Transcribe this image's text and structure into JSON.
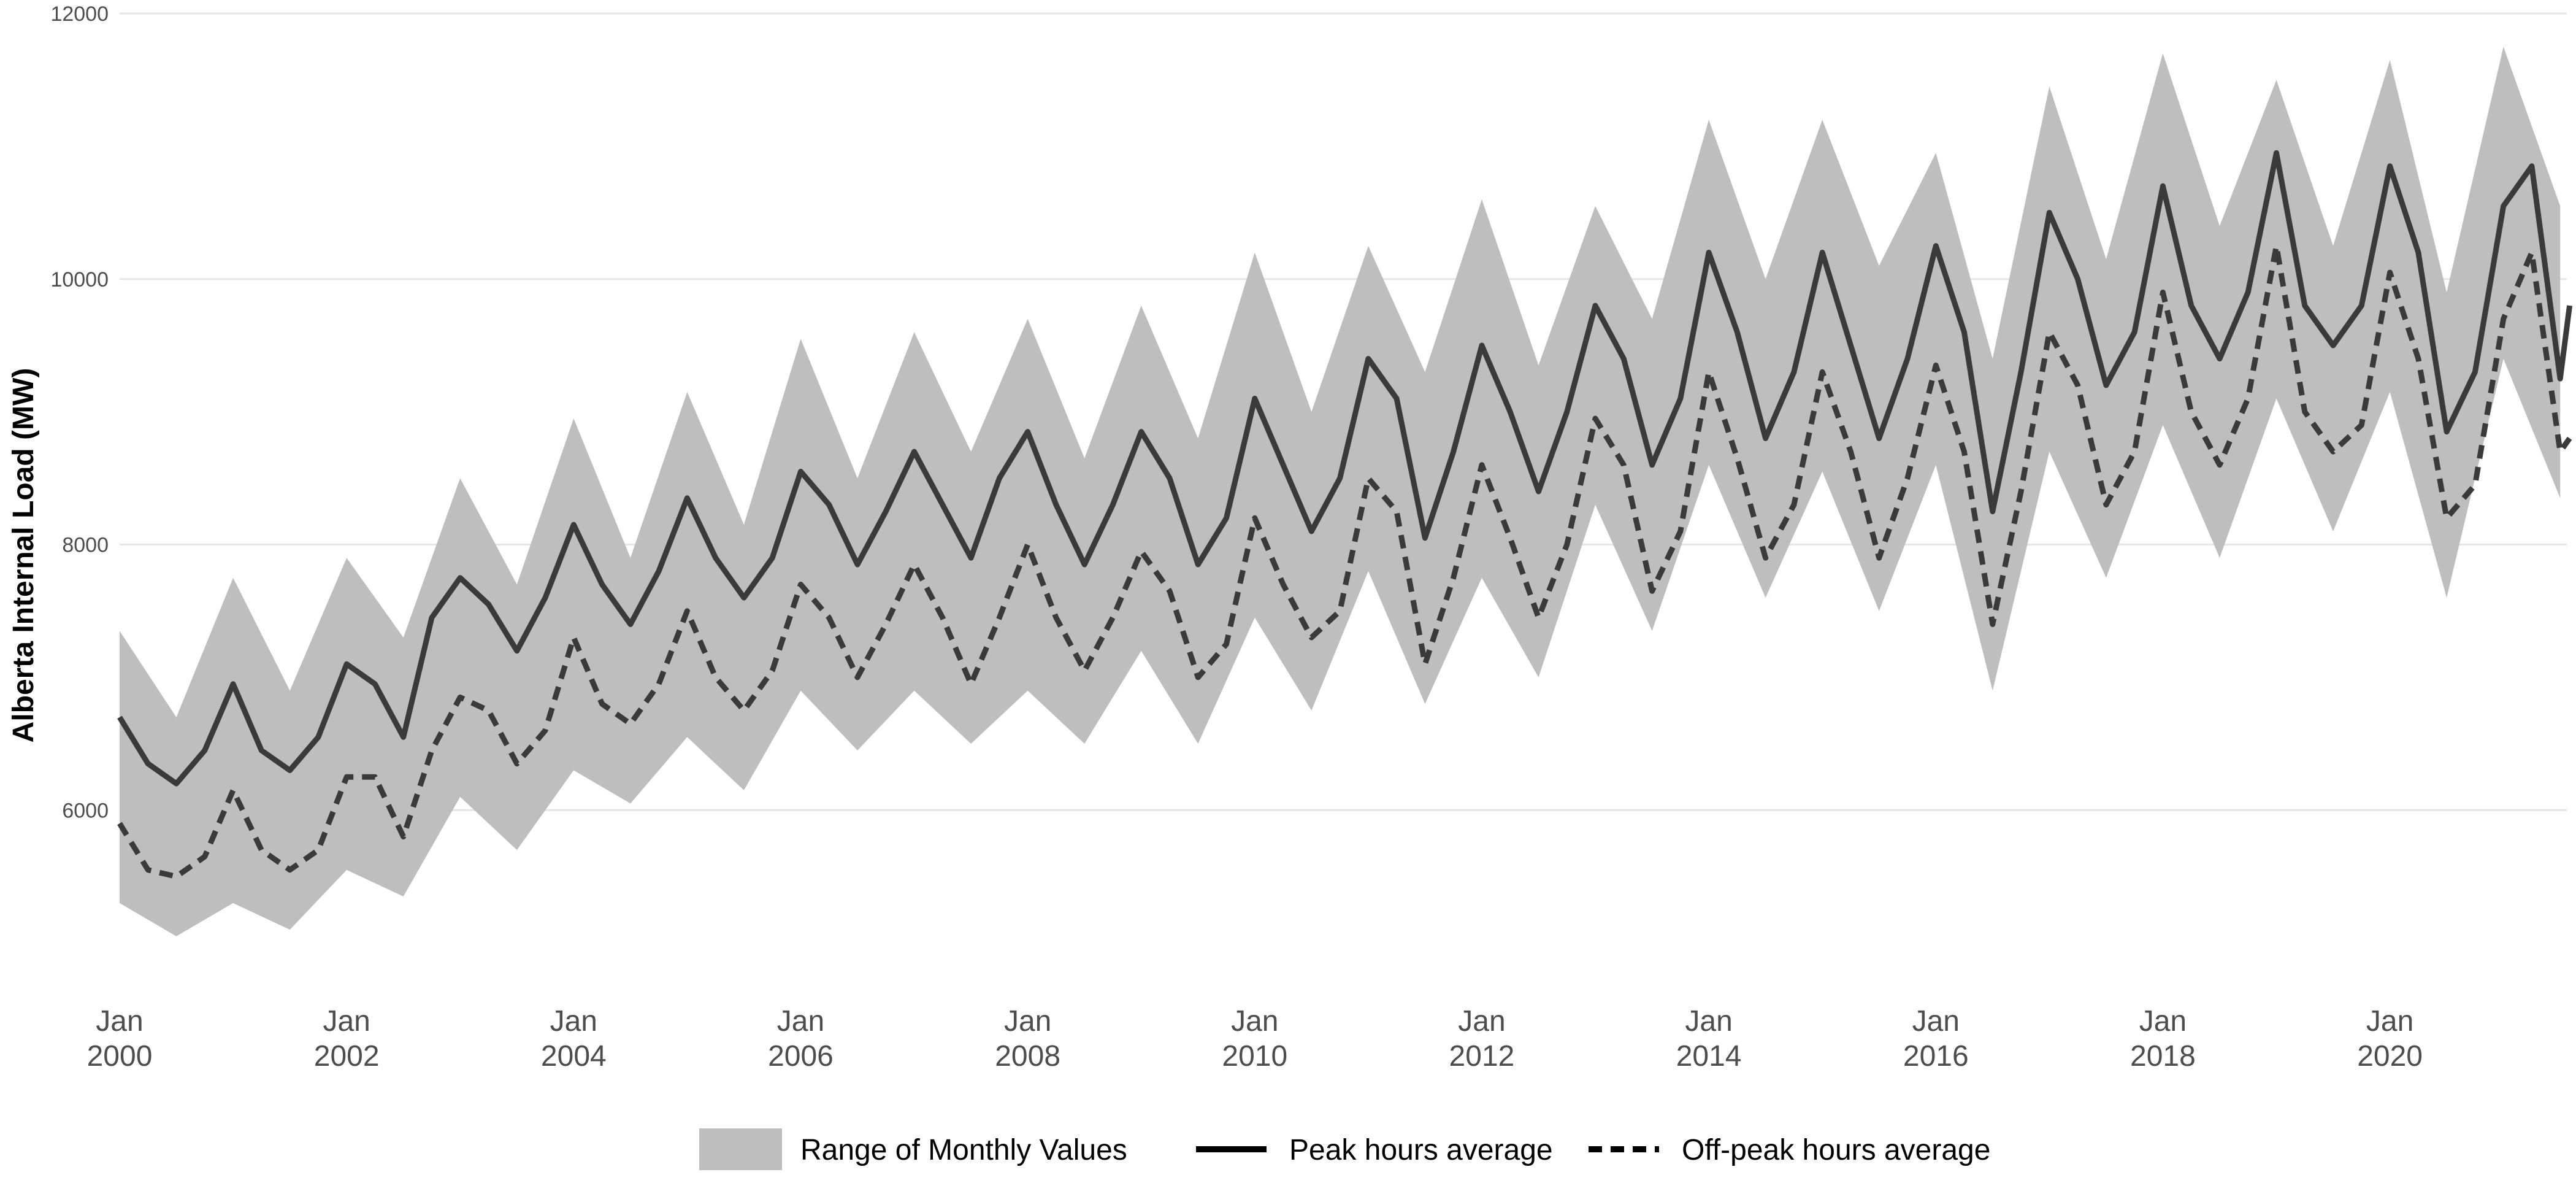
{
  "chart_data": {
    "type": "area",
    "ylabel": "Alberta Internal Load (MW)",
    "xlabel": "",
    "ylim": [
      4800,
      12000
    ],
    "yticks": [
      6000,
      8000,
      10000,
      12000
    ],
    "x_range": [
      "2000-01",
      "2021-07"
    ],
    "xticks": [
      {
        "date": "2000-01",
        "line1": "Jan",
        "line2": "2000"
      },
      {
        "date": "2002-01",
        "line1": "Jan",
        "line2": "2002"
      },
      {
        "date": "2004-01",
        "line1": "Jan",
        "line2": "2004"
      },
      {
        "date": "2006-01",
        "line1": "Jan",
        "line2": "2006"
      },
      {
        "date": "2008-01",
        "line1": "Jan",
        "line2": "2008"
      },
      {
        "date": "2010-01",
        "line1": "Jan",
        "line2": "2010"
      },
      {
        "date": "2012-01",
        "line1": "Jan",
        "line2": "2012"
      },
      {
        "date": "2014-01",
        "line1": "Jan",
        "line2": "2014"
      },
      {
        "date": "2016-01",
        "line1": "Jan",
        "line2": "2016"
      },
      {
        "date": "2018-01",
        "line1": "Jan",
        "line2": "2018"
      },
      {
        "date": "2020-01",
        "line1": "Jan",
        "line2": "2020"
      }
    ],
    "grid": true,
    "legend_position": "bottom",
    "colors": {
      "range_fill": "#bebebe",
      "line": "#3a3a3a"
    },
    "series": [
      {
        "name": "Range of Monthly Values",
        "kind": "ribbon",
        "points": [
          [
            "2000-01",
            5300,
            7350
          ],
          [
            "2000-07",
            5050,
            6700
          ],
          [
            "2001-01",
            5300,
            7750
          ],
          [
            "2001-07",
            5100,
            6900
          ],
          [
            "2002-01",
            5550,
            7900
          ],
          [
            "2002-07",
            5350,
            7300
          ],
          [
            "2003-01",
            6100,
            8500
          ],
          [
            "2003-07",
            5700,
            7700
          ],
          [
            "2004-01",
            6300,
            8950
          ],
          [
            "2004-07",
            6050,
            7900
          ],
          [
            "2005-01",
            6550,
            9150
          ],
          [
            "2005-07",
            6150,
            8150
          ],
          [
            "2006-01",
            6900,
            9550
          ],
          [
            "2006-07",
            6450,
            8500
          ],
          [
            "2007-01",
            6900,
            9600
          ],
          [
            "2007-07",
            6500,
            8700
          ],
          [
            "2008-01",
            6900,
            9700
          ],
          [
            "2008-07",
            6500,
            8650
          ],
          [
            "2009-01",
            7200,
            9800
          ],
          [
            "2009-07",
            6500,
            8800
          ],
          [
            "2010-01",
            7450,
            10200
          ],
          [
            "2010-07",
            6750,
            9000
          ],
          [
            "2011-01",
            7800,
            10250
          ],
          [
            "2011-07",
            6800,
            9300
          ],
          [
            "2012-01",
            7750,
            10600
          ],
          [
            "2012-07",
            7000,
            9350
          ],
          [
            "2013-01",
            8300,
            10550
          ],
          [
            "2013-07",
            7350,
            9700
          ],
          [
            "2014-01",
            8600,
            11200
          ],
          [
            "2014-07",
            7600,
            10000
          ],
          [
            "2015-01",
            8550,
            11200
          ],
          [
            "2015-07",
            7500,
            10100
          ],
          [
            "2016-01",
            8600,
            10950
          ],
          [
            "2016-07",
            6900,
            9400
          ],
          [
            "2017-01",
            8700,
            11450
          ],
          [
            "2017-07",
            7750,
            10150
          ],
          [
            "2018-01",
            8900,
            11700
          ],
          [
            "2018-07",
            7900,
            10400
          ],
          [
            "2019-01",
            9100,
            11500
          ],
          [
            "2019-07",
            8100,
            10250
          ],
          [
            "2020-01",
            9150,
            11650
          ],
          [
            "2020-07",
            7600,
            9900
          ],
          [
            "2021-01",
            9400,
            11750
          ],
          [
            "2021-07",
            8350,
            10550
          ]
        ]
      },
      {
        "name": "Peak hours average",
        "kind": "line",
        "style": "solid",
        "points": [
          [
            "2000-01",
            6700
          ],
          [
            "2000-04",
            6350
          ],
          [
            "2000-07",
            6200
          ],
          [
            "2000-10",
            6450
          ],
          [
            "2001-01",
            6950
          ],
          [
            "2001-04",
            6450
          ],
          [
            "2001-07",
            6300
          ],
          [
            "2001-10",
            6550
          ],
          [
            "2002-01",
            7100
          ],
          [
            "2002-04",
            6950
          ],
          [
            "2002-07",
            6550
          ],
          [
            "2002-10",
            7450
          ],
          [
            "2003-01",
            7750
          ],
          [
            "2003-04",
            7550
          ],
          [
            "2003-07",
            7200
          ],
          [
            "2003-10",
            7600
          ],
          [
            "2004-01",
            8150
          ],
          [
            "2004-04",
            7700
          ],
          [
            "2004-07",
            7400
          ],
          [
            "2004-10",
            7800
          ],
          [
            "2005-01",
            8350
          ],
          [
            "2005-04",
            7900
          ],
          [
            "2005-07",
            7600
          ],
          [
            "2005-10",
            7900
          ],
          [
            "2006-01",
            8550
          ],
          [
            "2006-04",
            8300
          ],
          [
            "2006-07",
            7850
          ],
          [
            "2006-10",
            8250
          ],
          [
            "2007-01",
            8700
          ],
          [
            "2007-04",
            8300
          ],
          [
            "2007-07",
            7900
          ],
          [
            "2007-10",
            8500
          ],
          [
            "2008-01",
            8850
          ],
          [
            "2008-04",
            8300
          ],
          [
            "2008-07",
            7850
          ],
          [
            "2008-10",
            8300
          ],
          [
            "2009-01",
            8850
          ],
          [
            "2009-04",
            8500
          ],
          [
            "2009-07",
            7850
          ],
          [
            "2009-10",
            8200
          ],
          [
            "2010-01",
            9100
          ],
          [
            "2010-04",
            8600
          ],
          [
            "2010-07",
            8100
          ],
          [
            "2010-10",
            8500
          ],
          [
            "2011-01",
            9400
          ],
          [
            "2011-04",
            9100
          ],
          [
            "2011-07",
            8050
          ],
          [
            "2011-10",
            8700
          ],
          [
            "2012-01",
            9500
          ],
          [
            "2012-04",
            9000
          ],
          [
            "2012-07",
            8400
          ],
          [
            "2012-10",
            9000
          ],
          [
            "2013-01",
            9800
          ],
          [
            "2013-04",
            9400
          ],
          [
            "2013-07",
            8600
          ],
          [
            "2013-10",
            9100
          ],
          [
            "2014-01",
            10200
          ],
          [
            "2014-04",
            9600
          ],
          [
            "2014-07",
            8800
          ],
          [
            "2014-10",
            9300
          ],
          [
            "2015-01",
            10200
          ],
          [
            "2015-04",
            9500
          ],
          [
            "2015-07",
            8800
          ],
          [
            "2015-10",
            9400
          ],
          [
            "2016-01",
            10250
          ],
          [
            "2016-04",
            9600
          ],
          [
            "2016-07",
            8250
          ],
          [
            "2016-10",
            9300
          ],
          [
            "2017-01",
            10500
          ],
          [
            "2017-04",
            10000
          ],
          [
            "2017-07",
            9200
          ],
          [
            "2017-10",
            9600
          ],
          [
            "2018-01",
            10700
          ],
          [
            "2018-04",
            9800
          ],
          [
            "2018-07",
            9400
          ],
          [
            "2018-10",
            9900
          ],
          [
            "2019-01",
            10950
          ],
          [
            "2019-04",
            9800
          ],
          [
            "2019-07",
            9500
          ],
          [
            "2019-10",
            9800
          ],
          [
            "2020-01",
            10850
          ],
          [
            "2020-04",
            10200
          ],
          [
            "2020-07",
            8850
          ],
          [
            "2020-10",
            9300
          ],
          [
            "2021-01",
            10550
          ],
          [
            "2021-04",
            10850
          ],
          [
            "2021-07",
            9250
          ],
          [
            "2021-08",
            9800
          ]
        ]
      },
      {
        "name": "Off-peak hours average",
        "kind": "line",
        "style": "dashed",
        "points": [
          [
            "2000-01",
            5900
          ],
          [
            "2000-04",
            5550
          ],
          [
            "2000-07",
            5500
          ],
          [
            "2000-10",
            5650
          ],
          [
            "2001-01",
            6150
          ],
          [
            "2001-04",
            5700
          ],
          [
            "2001-07",
            5550
          ],
          [
            "2001-10",
            5700
          ],
          [
            "2002-01",
            6250
          ],
          [
            "2002-04",
            6250
          ],
          [
            "2002-07",
            5800
          ],
          [
            "2002-10",
            6450
          ],
          [
            "2003-01",
            6850
          ],
          [
            "2003-04",
            6750
          ],
          [
            "2003-07",
            6350
          ],
          [
            "2003-10",
            6600
          ],
          [
            "2004-01",
            7300
          ],
          [
            "2004-04",
            6800
          ],
          [
            "2004-07",
            6650
          ],
          [
            "2004-10",
            6950
          ],
          [
            "2005-01",
            7500
          ],
          [
            "2005-04",
            7000
          ],
          [
            "2005-07",
            6750
          ],
          [
            "2005-10",
            7050
          ],
          [
            "2006-01",
            7700
          ],
          [
            "2006-04",
            7450
          ],
          [
            "2006-07",
            7000
          ],
          [
            "2006-10",
            7400
          ],
          [
            "2007-01",
            7850
          ],
          [
            "2007-04",
            7450
          ],
          [
            "2007-07",
            6950
          ],
          [
            "2007-10",
            7450
          ],
          [
            "2008-01",
            8000
          ],
          [
            "2008-04",
            7450
          ],
          [
            "2008-07",
            7050
          ],
          [
            "2008-10",
            7450
          ],
          [
            "2009-01",
            7950
          ],
          [
            "2009-04",
            7650
          ],
          [
            "2009-07",
            7000
          ],
          [
            "2009-10",
            7250
          ],
          [
            "2010-01",
            8200
          ],
          [
            "2010-04",
            7700
          ],
          [
            "2010-07",
            7300
          ],
          [
            "2010-10",
            7500
          ],
          [
            "2011-01",
            8500
          ],
          [
            "2011-04",
            8250
          ],
          [
            "2011-07",
            7100
          ],
          [
            "2011-10",
            7750
          ],
          [
            "2012-01",
            8600
          ],
          [
            "2012-04",
            8050
          ],
          [
            "2012-07",
            7450
          ],
          [
            "2012-10",
            8000
          ],
          [
            "2013-01",
            8950
          ],
          [
            "2013-04",
            8600
          ],
          [
            "2013-07",
            7650
          ],
          [
            "2013-10",
            8100
          ],
          [
            "2014-01",
            9300
          ],
          [
            "2014-04",
            8650
          ],
          [
            "2014-07",
            7900
          ],
          [
            "2014-10",
            8300
          ],
          [
            "2015-01",
            9300
          ],
          [
            "2015-04",
            8700
          ],
          [
            "2015-07",
            7900
          ],
          [
            "2015-10",
            8500
          ],
          [
            "2016-01",
            9350
          ],
          [
            "2016-04",
            8700
          ],
          [
            "2016-07",
            7400
          ],
          [
            "2016-10",
            8400
          ],
          [
            "2017-01",
            9600
          ],
          [
            "2017-04",
            9200
          ],
          [
            "2017-07",
            8300
          ],
          [
            "2017-10",
            8700
          ],
          [
            "2018-01",
            9900
          ],
          [
            "2018-04",
            9000
          ],
          [
            "2018-07",
            8600
          ],
          [
            "2018-10",
            9100
          ],
          [
            "2019-01",
            10250
          ],
          [
            "2019-04",
            9000
          ],
          [
            "2019-07",
            8700
          ],
          [
            "2019-10",
            8900
          ],
          [
            "2020-01",
            10050
          ],
          [
            "2020-04",
            9400
          ],
          [
            "2020-07",
            8200
          ],
          [
            "2020-10",
            8450
          ],
          [
            "2021-01",
            9700
          ],
          [
            "2021-04",
            10200
          ],
          [
            "2021-07",
            8700
          ],
          [
            "2021-08",
            8800
          ]
        ]
      }
    ]
  }
}
